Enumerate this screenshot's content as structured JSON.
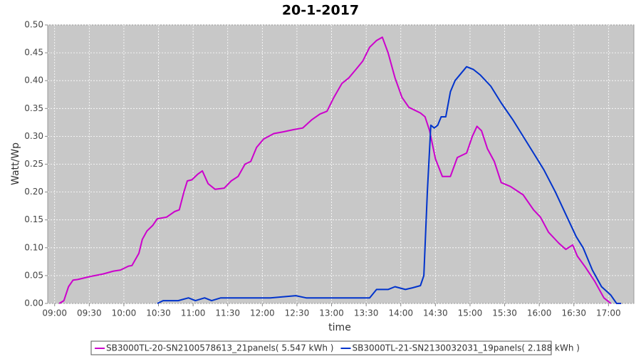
{
  "chart_data": {
    "type": "line",
    "title": "20-1-2017",
    "xlabel": "time",
    "ylabel": "Watt/Wp",
    "xlim": [
      "08:54",
      "17:22"
    ],
    "xticks": [
      "09:00",
      "09:30",
      "10:00",
      "10:30",
      "11:00",
      "11:30",
      "12:00",
      "12:30",
      "13:00",
      "13:30",
      "14:00",
      "14:30",
      "15:00",
      "15:30",
      "16:00",
      "16:30",
      "17:00"
    ],
    "ylim": [
      0,
      0.5
    ],
    "yticks": [
      {
        "value": 0,
        "label": "0.00"
      },
      0.05,
      {
        "value": 0.1,
        "label": "0.10"
      },
      0.15,
      {
        "value": 0.2,
        "label": "0.20"
      },
      0.25,
      {
        "value": 0.3,
        "label": "0.30"
      },
      0.35,
      {
        "value": 0.4,
        "label": "0.40"
      },
      0.45,
      {
        "value": 0.5,
        "label": "0.50"
      }
    ],
    "grid": true,
    "legend": "bottom",
    "series": [
      {
        "name": "SB3000TL-20-SN2100578613_21panels( 5.547 kWh )",
        "color": "#cc00cc",
        "x": [
          "09:04",
          "09:08",
          "09:12",
          "09:16",
          "09:20",
          "09:30",
          "09:42",
          "09:51",
          "09:57",
          "10:04",
          "10:07",
          "10:13",
          "10:16",
          "10:20",
          "10:25",
          "10:29",
          "10:37",
          "10:44",
          "10:48",
          "10:52",
          "10:55",
          "10:59",
          "11:04",
          "11:08",
          "11:13",
          "11:19",
          "11:27",
          "11:33",
          "11:39",
          "11:45",
          "11:50",
          "11:55",
          "12:01",
          "12:10",
          "12:18",
          "12:27",
          "12:35",
          "12:43",
          "12:50",
          "12:56",
          "13:02",
          "13:09",
          "13:15",
          "13:21",
          "13:27",
          "13:33",
          "13:39",
          "13:44",
          "13:49",
          "13:55",
          "14:01",
          "14:07",
          "14:17",
          "14:21",
          "14:25",
          "14:30",
          "14:36",
          "14:43",
          "14:49",
          "14:57",
          "15:02",
          "15:06",
          "15:10",
          "15:15",
          "15:21",
          "15:27",
          "15:35",
          "15:46",
          "15:55",
          "16:01",
          "16:08",
          "16:17",
          "16:23",
          "16:29",
          "16:33",
          "16:40",
          "16:48",
          "16:56",
          "17:02"
        ],
        "values": [
          0,
          0.005,
          0.03,
          0.042,
          0.043,
          0.048,
          0.053,
          0.058,
          0.06,
          0.067,
          0.068,
          0.09,
          0.115,
          0.13,
          0.14,
          0.152,
          0.155,
          0.165,
          0.168,
          0.2,
          0.22,
          0.222,
          0.232,
          0.238,
          0.215,
          0.205,
          0.207,
          0.22,
          0.228,
          0.25,
          0.255,
          0.28,
          0.295,
          0.305,
          0.308,
          0.312,
          0.315,
          0.33,
          0.34,
          0.345,
          0.37,
          0.395,
          0.405,
          0.42,
          0.435,
          0.46,
          0.472,
          0.478,
          0.45,
          0.405,
          0.37,
          0.352,
          0.342,
          0.335,
          0.31,
          0.26,
          0.228,
          0.228,
          0.262,
          0.27,
          0.3,
          0.318,
          0.31,
          0.278,
          0.255,
          0.217,
          0.21,
          0.195,
          0.168,
          0.155,
          0.128,
          0.108,
          0.097,
          0.105,
          0.085,
          0.065,
          0.04,
          0.01,
          0
        ]
      },
      {
        "name": "SB3000TL-21-SN2130032031_19panels( 2.188 kWh )",
        "color": "#0033cc",
        "x": [
          "10:29",
          "10:34",
          "10:47",
          "10:56",
          "11:02",
          "11:10",
          "11:16",
          "11:24",
          "11:36",
          "12:07",
          "12:29",
          "12:38",
          "12:56",
          "13:09",
          "13:33",
          "13:39",
          "13:49",
          "13:55",
          "14:04",
          "14:10",
          "14:17",
          "14:20",
          "14:23",
          "14:26",
          "14:29",
          "14:32",
          "14:35",
          "14:39",
          "14:43",
          "14:47",
          "14:57",
          "15:03",
          "15:09",
          "15:18",
          "15:27",
          "15:37",
          "15:46",
          "15:55",
          "16:04",
          "16:14",
          "16:23",
          "16:32",
          "16:38",
          "16:46",
          "16:54",
          "17:02",
          "17:07",
          "17:11"
        ],
        "values": [
          0,
          0.005,
          0.005,
          0.01,
          0.005,
          0.01,
          0.005,
          0.01,
          0.01,
          0.01,
          0.014,
          0.01,
          0.01,
          0.01,
          0.01,
          0.025,
          0.025,
          0.03,
          0.025,
          0.028,
          0.032,
          0.05,
          0.2,
          0.32,
          0.315,
          0.32,
          0.335,
          0.335,
          0.38,
          0.4,
          0.425,
          0.42,
          0.41,
          0.39,
          0.36,
          0.33,
          0.3,
          0.27,
          0.24,
          0.2,
          0.16,
          0.12,
          0.1,
          0.06,
          0.03,
          0.015,
          0,
          0
        ]
      }
    ]
  }
}
